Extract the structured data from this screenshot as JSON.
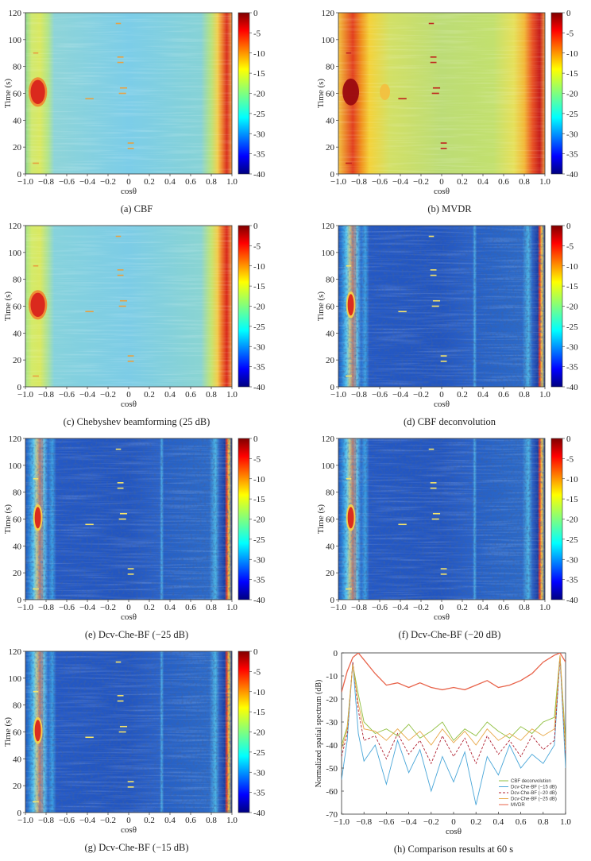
{
  "figure": {
    "layout": "4 rows x 2 columns"
  },
  "chart_data": [
    {
      "id": "a",
      "type": "heatmap",
      "method": "cbf",
      "caption": "(a) CBF",
      "xlabel": "cosθ",
      "ylabel": "Time (s)",
      "xlim": [
        -1.0,
        1.0
      ],
      "ylim": [
        0,
        120
      ],
      "x_ticks": [
        "−1.0",
        "−0.8",
        "−0.6",
        "−0.4",
        "−0.2",
        "0",
        "0.2",
        "0.4",
        "0.6",
        "0.8",
        "1.0"
      ],
      "y_ticks": [
        "0",
        "20",
        "40",
        "60",
        "80",
        "100",
        "120"
      ],
      "colorbar": {
        "min": -40,
        "max": 0,
        "ticks": [
          "0",
          "-5",
          "-10",
          "-15",
          "-20",
          "-25",
          "-30",
          "-35",
          "-40"
        ]
      }
    },
    {
      "id": "b",
      "type": "heatmap",
      "method": "mvdr",
      "caption": "(b) MVDR",
      "xlabel": "cosθ",
      "ylabel": "Time (s)",
      "xlim": [
        -1.0,
        1.0
      ],
      "ylim": [
        0,
        120
      ],
      "x_ticks": [
        "−1.0",
        "−0.8",
        "−0.6",
        "−0.4",
        "−0.2",
        "0",
        "0.2",
        "0.4",
        "0.6",
        "0.8",
        "1.0"
      ],
      "y_ticks": [
        "0",
        "20",
        "40",
        "60",
        "80",
        "100",
        "120"
      ],
      "colorbar": {
        "min": -40,
        "max": 0,
        "ticks": [
          "0",
          "-5",
          "-10",
          "-15",
          "-20",
          "-25",
          "-30",
          "-35",
          "-40"
        ]
      }
    },
    {
      "id": "c",
      "type": "heatmap",
      "method": "cheb",
      "caption": "(c) Chebyshev beamforming (25 dB)",
      "xlabel": "cosθ",
      "ylabel": "Time (s)",
      "xlim": [
        -1.0,
        1.0
      ],
      "ylim": [
        0,
        120
      ],
      "x_ticks": [
        "−1.0",
        "−0.8",
        "−0.6",
        "−0.4",
        "−0.2",
        "0",
        "0.2",
        "0.4",
        "0.6",
        "0.8",
        "1.0"
      ],
      "y_ticks": [
        "0",
        "20",
        "40",
        "60",
        "80",
        "100",
        "120"
      ],
      "colorbar": {
        "min": -40,
        "max": 0,
        "ticks": [
          "0",
          "-5",
          "-10",
          "-15",
          "-20",
          "-25",
          "-30",
          "-35",
          "-40"
        ]
      }
    },
    {
      "id": "d",
      "type": "heatmap",
      "method": "dcv",
      "caption": "(d) CBF deconvolution",
      "xlabel": "cosθ",
      "ylabel": "Time (s)",
      "xlim": [
        -1.0,
        1.0
      ],
      "ylim": [
        0,
        120
      ],
      "x_ticks": [
        "−1.0",
        "−0.8",
        "−0.6",
        "−0.4",
        "−0.2",
        "0",
        "0.2",
        "0.4",
        "0.6",
        "0.8",
        "1.0"
      ],
      "y_ticks": [
        "0",
        "20",
        "40",
        "60",
        "80",
        "100",
        "120"
      ],
      "colorbar": {
        "min": -40,
        "max": 0,
        "ticks": [
          "0",
          "-5",
          "-10",
          "-15",
          "-20",
          "-25",
          "-30",
          "-35",
          "-40"
        ]
      }
    },
    {
      "id": "e",
      "type": "heatmap",
      "method": "dcv",
      "caption": "(e) Dcv-Che-BF (−25 dB)",
      "xlabel": "cosθ",
      "ylabel": "Time (s)",
      "xlim": [
        -1.0,
        1.0
      ],
      "ylim": [
        0,
        120
      ],
      "x_ticks": [
        "−1.0",
        "−0.8",
        "−0.6",
        "−0.4",
        "−0.2",
        "0",
        "0.2",
        "0.4",
        "0.6",
        "0.8",
        "1.0"
      ],
      "y_ticks": [
        "0",
        "20",
        "40",
        "60",
        "80",
        "100",
        "120"
      ],
      "colorbar": {
        "min": -40,
        "max": 0,
        "ticks": [
          "0",
          "-5",
          "-10",
          "-15",
          "-20",
          "-25",
          "-30",
          "-35",
          "-40"
        ]
      }
    },
    {
      "id": "f",
      "type": "heatmap",
      "method": "dcv",
      "caption": "(f) Dcv-Che-BF (−20 dB)",
      "xlabel": "cosθ",
      "ylabel": "Time (s)",
      "xlim": [
        -1.0,
        1.0
      ],
      "ylim": [
        0,
        120
      ],
      "x_ticks": [
        "−1.0",
        "−0.8",
        "−0.6",
        "−0.4",
        "−0.2",
        "0",
        "0.2",
        "0.4",
        "0.6",
        "0.8",
        "1.0"
      ],
      "y_ticks": [
        "0",
        "20",
        "40",
        "60",
        "80",
        "100",
        "120"
      ],
      "colorbar": {
        "min": -40,
        "max": 0,
        "ticks": [
          "0",
          "-5",
          "-10",
          "-15",
          "-20",
          "-25",
          "-30",
          "-35",
          "-40"
        ]
      }
    },
    {
      "id": "g",
      "type": "heatmap",
      "method": "dcv",
      "caption": "(g) Dcv-Che-BF (−15 dB)",
      "xlabel": "cosθ",
      "ylabel": "Time (s)",
      "xlim": [
        -1.0,
        1.0
      ],
      "ylim": [
        0,
        120
      ],
      "x_ticks": [
        "−1.0",
        "−0.8",
        "−0.6",
        "−0.4",
        "−0.2",
        "0",
        "0.2",
        "0.4",
        "0.6",
        "0.8",
        "1.0"
      ],
      "y_ticks": [
        "0",
        "20",
        "40",
        "60",
        "80",
        "100",
        "120"
      ],
      "colorbar": {
        "min": -40,
        "max": 0,
        "ticks": [
          "0",
          "-5",
          "-10",
          "-15",
          "-20",
          "-25",
          "-30",
          "-35",
          "-40"
        ]
      }
    },
    {
      "id": "h",
      "type": "line",
      "caption": "(h) Comparison results at 60 s",
      "xlabel": "cosθ",
      "ylabel": "Normalized spatial spectrum (dB)",
      "xlim": [
        -1.0,
        1.0
      ],
      "ylim": [
        -70,
        0
      ],
      "x_ticks": [
        "−1.0",
        "−0.8",
        "−0.6",
        "−0.4",
        "−0.2",
        "0",
        "0.2",
        "0.4",
        "0.6",
        "0.8",
        "1.0"
      ],
      "y_ticks": [
        "0",
        "-10",
        "-20",
        "-30",
        "-40",
        "-50",
        "-60",
        "-70"
      ],
      "legend_position": "bottom-right",
      "series": [
        {
          "name": "CBF deconvolution",
          "color": "#8fbf3f",
          "dash": "solid",
          "x": [
            -1.0,
            -0.95,
            -0.9,
            -0.85,
            -0.8,
            -0.7,
            -0.6,
            -0.5,
            -0.4,
            -0.3,
            -0.2,
            -0.1,
            0.0,
            0.1,
            0.2,
            0.3,
            0.4,
            0.5,
            0.6,
            0.7,
            0.8,
            0.9,
            0.95,
            1.0
          ],
          "y": [
            -40,
            -32,
            -5,
            -18,
            -30,
            -35,
            -33,
            -36,
            -31,
            -37,
            -34,
            -30,
            -38,
            -33,
            -36,
            -30,
            -34,
            -37,
            -32,
            -35,
            -30,
            -28,
            -1,
            -38
          ]
        },
        {
          "name": "Dcv-Che-BF (−15 dB)",
          "color": "#49a6d8",
          "dash": "solid",
          "x": [
            -1.0,
            -0.95,
            -0.9,
            -0.85,
            -0.8,
            -0.7,
            -0.6,
            -0.5,
            -0.4,
            -0.3,
            -0.2,
            -0.1,
            0.0,
            0.1,
            0.2,
            0.3,
            0.4,
            0.5,
            0.6,
            0.7,
            0.8,
            0.9,
            0.95,
            1.0
          ],
          "y": [
            -55,
            -38,
            -4,
            -35,
            -47,
            -40,
            -57,
            -38,
            -52,
            -42,
            -60,
            -45,
            -56,
            -43,
            -66,
            -45,
            -53,
            -40,
            -50,
            -44,
            -48,
            -40,
            -2,
            -50
          ]
        },
        {
          "name": "Dcv-Che-BF (−20 dB)",
          "color": "#b02030",
          "dash": "dashed",
          "x": [
            -1.0,
            -0.95,
            -0.9,
            -0.85,
            -0.8,
            -0.7,
            -0.6,
            -0.5,
            -0.4,
            -0.3,
            -0.2,
            -0.1,
            0.0,
            0.1,
            0.2,
            0.3,
            0.4,
            0.5,
            0.6,
            0.7,
            0.8,
            0.9,
            0.95,
            1.0
          ],
          "y": [
            -45,
            -35,
            -4,
            -25,
            -38,
            -36,
            -46,
            -35,
            -44,
            -38,
            -48,
            -36,
            -45,
            -37,
            -48,
            -36,
            -44,
            -38,
            -45,
            -36,
            -42,
            -38,
            -2,
            -44
          ]
        },
        {
          "name": "Dcv-Che-BF (−25 dB)",
          "color": "#e8a848",
          "dash": "solid",
          "x": [
            -1.0,
            -0.95,
            -0.9,
            -0.85,
            -0.8,
            -0.7,
            -0.6,
            -0.5,
            -0.4,
            -0.3,
            -0.2,
            -0.1,
            0.0,
            0.1,
            0.2,
            0.3,
            0.4,
            0.5,
            0.6,
            0.7,
            0.8,
            0.9,
            0.95,
            1.0
          ],
          "y": [
            -42,
            -33,
            -5,
            -22,
            -33,
            -34,
            -38,
            -33,
            -38,
            -34,
            -40,
            -33,
            -39,
            -34,
            -40,
            -33,
            -38,
            -35,
            -38,
            -33,
            -36,
            -33,
            -1,
            -42
          ]
        },
        {
          "name": "MVDR",
          "color": "#e8634a",
          "dash": "solid",
          "x": [
            -1.0,
            -0.95,
            -0.9,
            -0.85,
            -0.8,
            -0.7,
            -0.6,
            -0.5,
            -0.4,
            -0.3,
            -0.2,
            -0.1,
            0.0,
            0.1,
            0.2,
            0.3,
            0.4,
            0.5,
            0.6,
            0.7,
            0.8,
            0.9,
            0.95,
            1.0
          ],
          "y": [
            -17,
            -8,
            -2,
            0,
            -3,
            -9,
            -14,
            -13,
            -15,
            -13,
            -15,
            -16,
            -15,
            -16,
            -14,
            -12,
            -15,
            -14,
            -12,
            -9,
            -4,
            -1,
            0,
            -4
          ]
        }
      ]
    }
  ]
}
